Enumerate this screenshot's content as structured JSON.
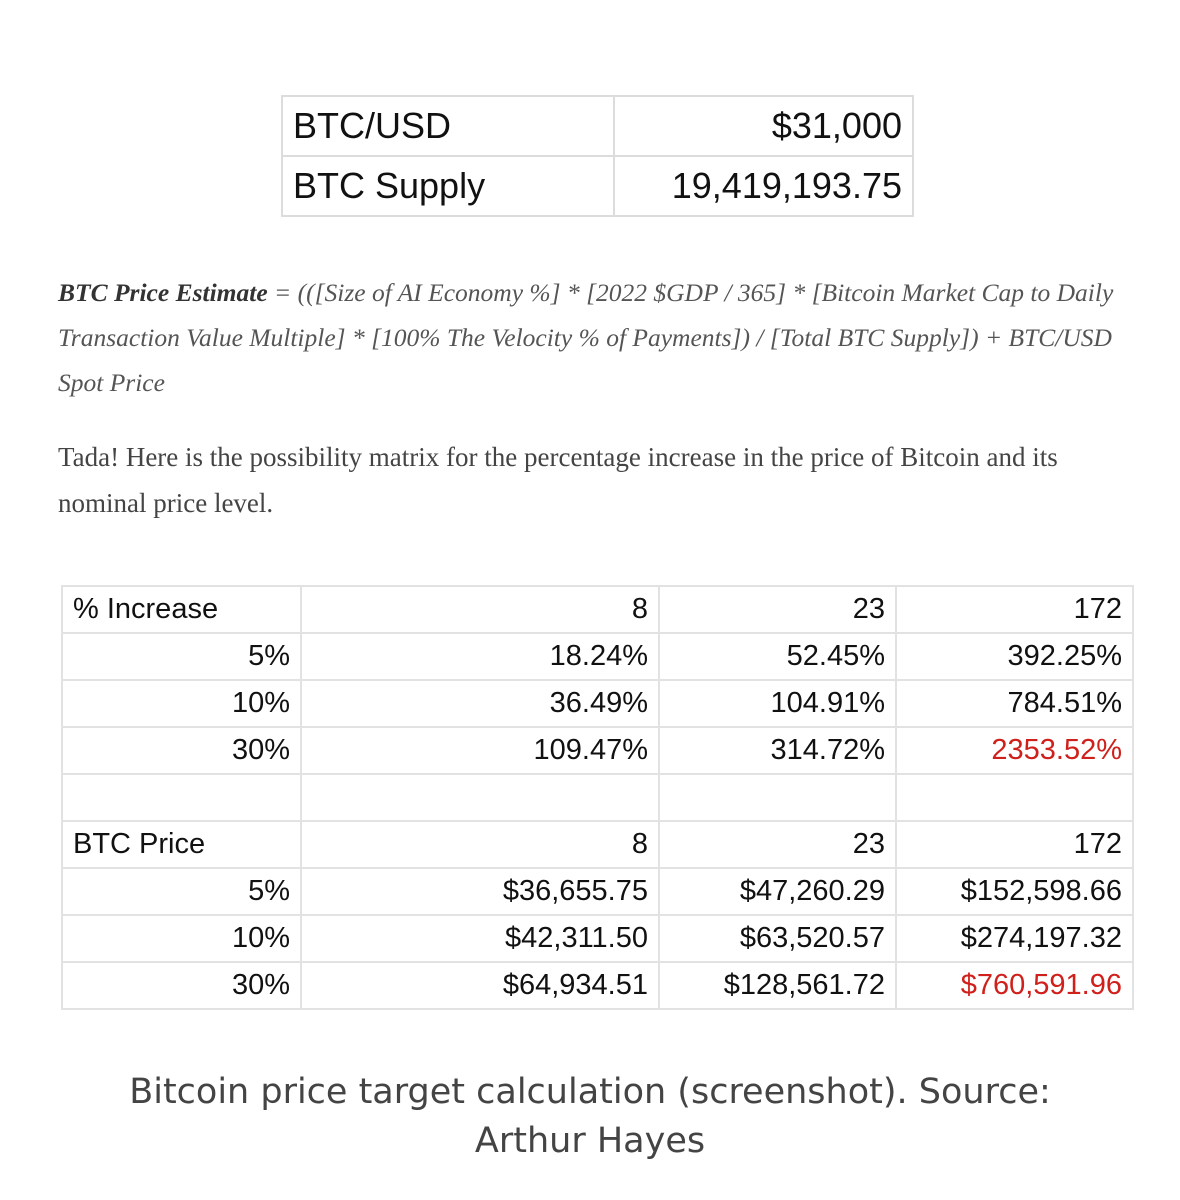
{
  "summary_table": {
    "rows": [
      {
        "label": "BTC/USD",
        "value": "$31,000"
      },
      {
        "label": "BTC Supply",
        "value": "19,419,193.75"
      }
    ]
  },
  "formula": {
    "bold_label": "BTC Price Estimate",
    "text": " = (([Size of AI Economy %] * [2022 $GDP / 365] * [Bitcoin Market Cap to Daily Transaction Value Multiple] * [100% The Velocity % of Payments]) / [Total BTC Supply]) + BTC/USD Spot Price"
  },
  "intro": "Tada! Here is the possibility matrix for the percentage increase in the price of Bitcoin and its nominal price level.",
  "increase_section": {
    "header": [
      "% Increase",
      "8",
      "23",
      "172"
    ],
    "rows": [
      [
        "5%",
        "18.24%",
        "52.45%",
        "392.25%"
      ],
      [
        "10%",
        "36.49%",
        "104.91%",
        "784.51%"
      ],
      [
        "30%",
        "109.47%",
        "314.72%",
        "2353.52%"
      ]
    ]
  },
  "price_section": {
    "header": [
      "BTC Price",
      "8",
      "23",
      "172"
    ],
    "rows": [
      [
        "5%",
        "$36,655.75",
        "$47,260.29",
        "$152,598.66"
      ],
      [
        "10%",
        "$42,311.50",
        "$63,520.57",
        "$274,197.32"
      ],
      [
        "30%",
        "$64,934.51",
        "$128,561.72",
        "$760,591.96"
      ]
    ]
  },
  "highlight_color": "#d0201b",
  "caption": {
    "line1": "Bitcoin price target calculation (screenshot). Source:",
    "line2": "Arthur Hayes"
  }
}
